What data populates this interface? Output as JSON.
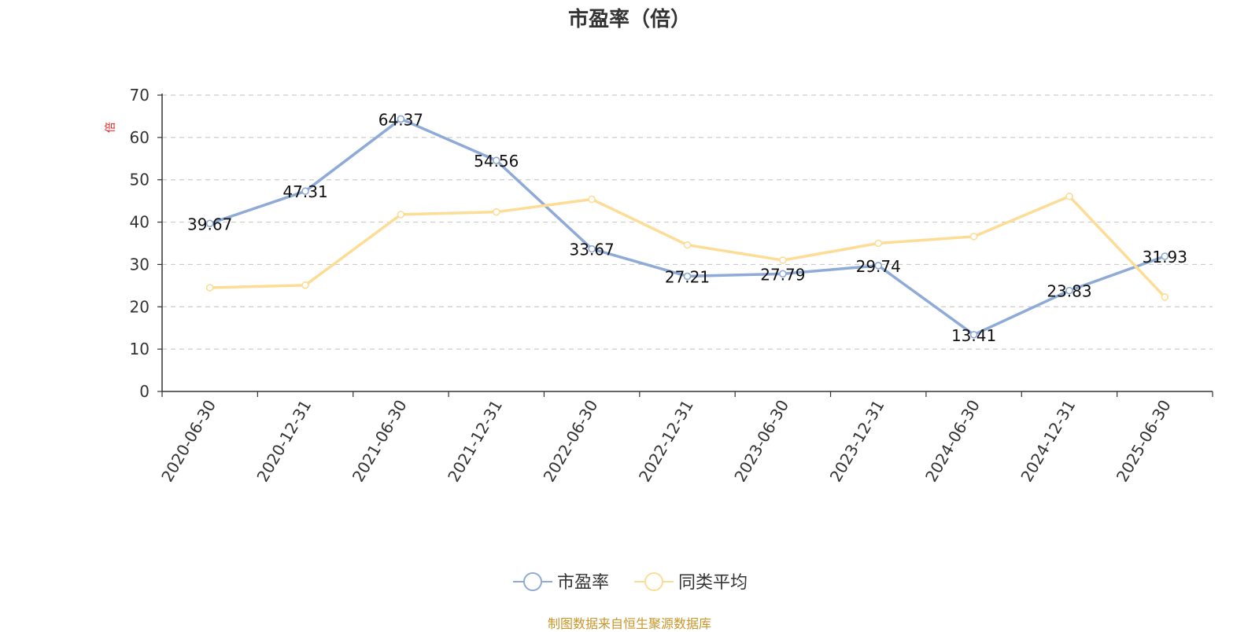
{
  "chart_data": {
    "type": "line",
    "title": "市盈率（倍）",
    "ylabel": "倍",
    "xlabel": "",
    "categories": [
      "2020-06-30",
      "2020-12-31",
      "2021-06-30",
      "2021-12-31",
      "2022-06-30",
      "2022-12-31",
      "2023-06-30",
      "2023-12-31",
      "2024-06-30",
      "2024-12-31",
      "2025-06-30"
    ],
    "ylim": [
      0,
      70
    ],
    "yticks": [
      0,
      10,
      20,
      30,
      40,
      50,
      60,
      70
    ],
    "grid": true,
    "legend_position": "bottom",
    "series": [
      {
        "name": "市盈率",
        "color": "#8eaad6",
        "values": [
          39.67,
          47.31,
          64.37,
          54.56,
          33.67,
          27.21,
          27.79,
          29.74,
          13.41,
          23.83,
          31.93
        ],
        "labels": [
          "39.67",
          "47.31",
          "64.37",
          "54.56",
          "33.67",
          "27.21",
          "27.79",
          "29.74",
          "13.41",
          "23.83",
          "31.93"
        ]
      },
      {
        "name": "同类平均",
        "color": "#fddc95",
        "values": [
          24.5,
          25.1,
          41.8,
          42.4,
          45.4,
          34.6,
          31.0,
          35.0,
          36.6,
          46.1,
          22.3
        ]
      }
    ]
  },
  "source_text": "制图数据来自恒生聚源数据库"
}
